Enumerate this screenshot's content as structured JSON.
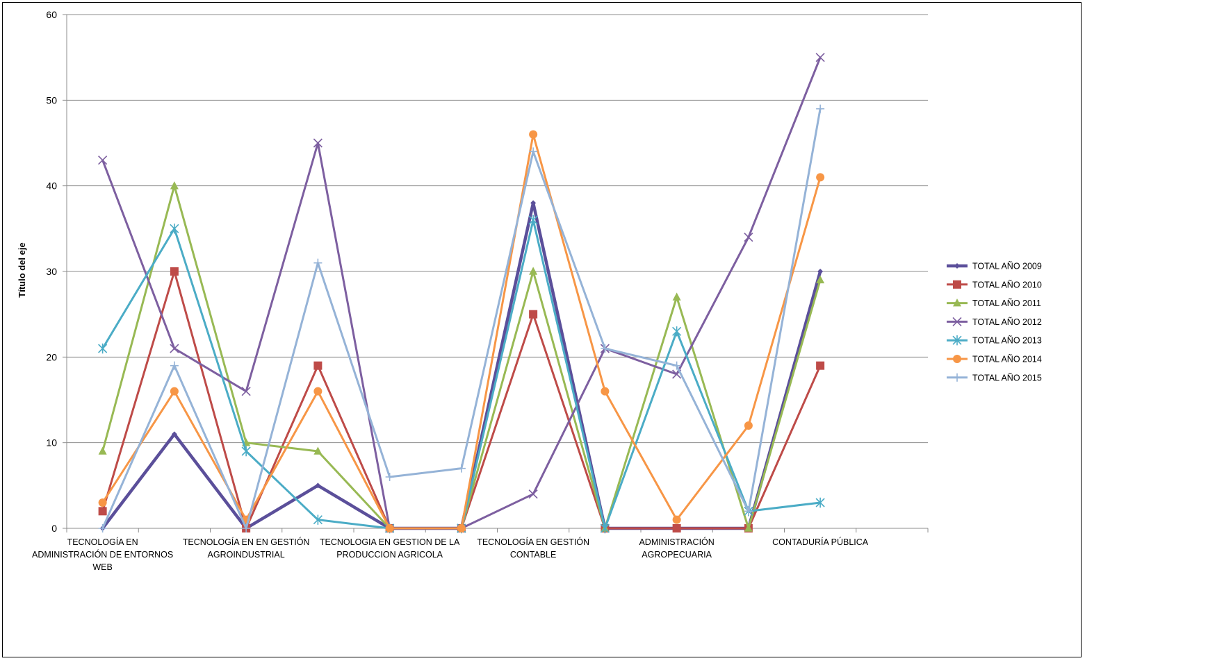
{
  "chart_data": {
    "type": "line",
    "title": "",
    "xlabel": "",
    "ylabel": "Título del eje",
    "ylim": [
      0,
      60
    ],
    "yticks": [
      0,
      10,
      20,
      30,
      40,
      50,
      60
    ],
    "grid": true,
    "legend_position": "right",
    "x": [
      "1",
      "2",
      "3",
      "4",
      "5",
      "6",
      "7",
      "8",
      "9",
      "10",
      "11",
      "12"
    ],
    "category_labels": [
      [
        "TECNOLOGÍA EN",
        "ADMINISTRACIÓN DE ENTORNOS",
        "WEB"
      ],
      [
        "TECNOLOGÍA EN EN GESTIÓN",
        "AGROINDUSTRIAL"
      ],
      [
        "TECNOLOGIA EN GESTION DE LA",
        "PRODUCCION AGRICOLA"
      ],
      [
        "TECNOLOGÍA EN GESTIÓN",
        "CONTABLE"
      ],
      [
        "ADMINISTRACIÓN",
        "AGROPECUARIA"
      ],
      [
        "CONTADURÍA PÚBLICA"
      ]
    ],
    "series": [
      {
        "name": "TOTAL AÑO 2009",
        "color": "#5b4f9a",
        "marker": "diamond",
        "values": [
          0,
          11,
          0,
          5,
          0,
          0,
          38,
          0,
          0,
          0,
          30,
          null
        ]
      },
      {
        "name": "TOTAL AÑO 2010",
        "color": "#be4b48",
        "marker": "square",
        "values": [
          2,
          30,
          0,
          19,
          0,
          0,
          25,
          0,
          0,
          0,
          19,
          null
        ]
      },
      {
        "name": "TOTAL AÑO 2011",
        "color": "#98b954",
        "marker": "triangle",
        "values": [
          9,
          40,
          10,
          9,
          0,
          0,
          30,
          0,
          27,
          0,
          29,
          null
        ]
      },
      {
        "name": "TOTAL AÑO 2012",
        "color": "#7d5fa0",
        "marker": "x",
        "values": [
          43,
          21,
          16,
          45,
          0,
          0,
          4,
          21,
          18,
          34,
          55,
          null
        ]
      },
      {
        "name": "TOTAL AÑO 2013",
        "color": "#4bacc6",
        "marker": "star",
        "values": [
          21,
          35,
          9,
          1,
          0,
          0,
          36,
          0,
          23,
          2,
          3,
          null
        ]
      },
      {
        "name": "TOTAL AÑO 2014",
        "color": "#f79646",
        "marker": "circle",
        "values": [
          3,
          16,
          1,
          16,
          0,
          0,
          46,
          16,
          1,
          12,
          41,
          null
        ]
      },
      {
        "name": "TOTAL AÑO 2015",
        "color": "#95b3d7",
        "marker": "plus",
        "values": [
          0,
          19,
          0,
          31,
          6,
          7,
          44,
          21,
          19,
          2,
          49,
          null
        ]
      }
    ]
  }
}
